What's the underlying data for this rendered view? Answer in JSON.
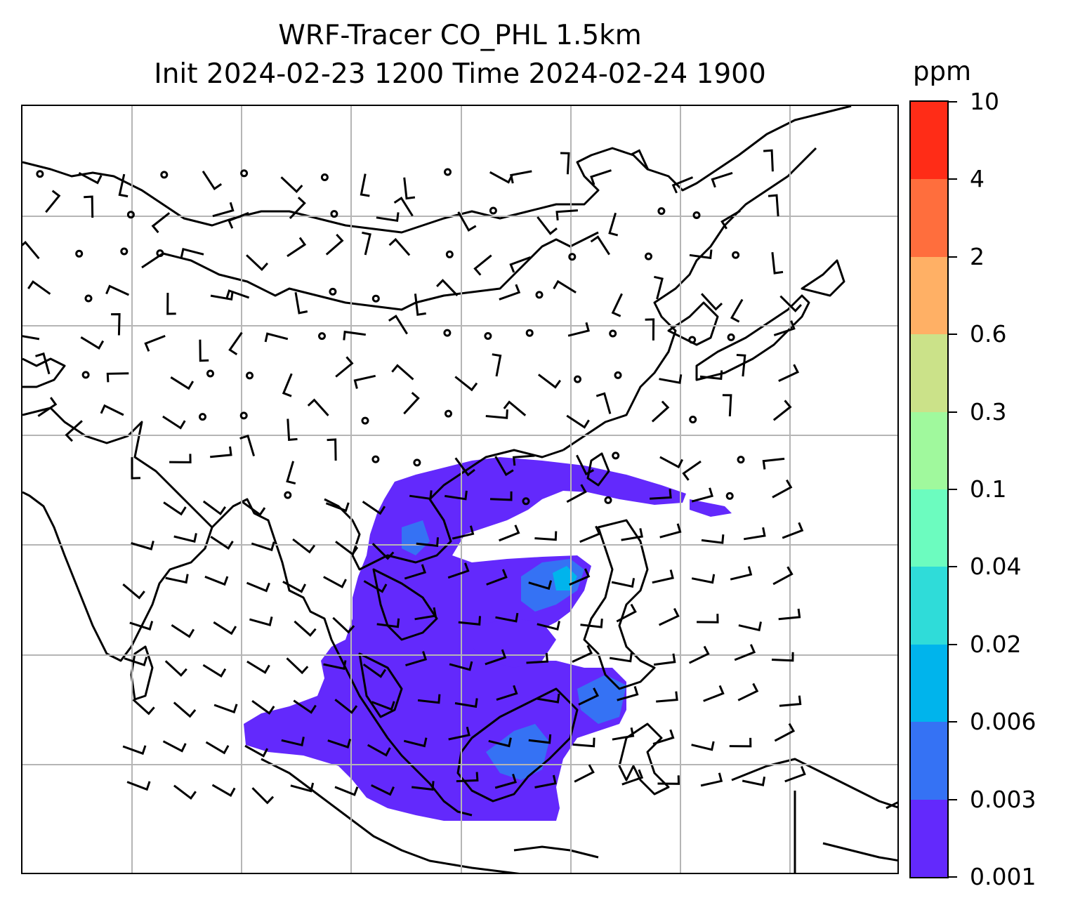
{
  "title": {
    "line1": "WRF-Tracer CO_PHL 1.5km",
    "line2": "Init 2024-02-23 1200 Time 2024-02-24 1900"
  },
  "colorbar": {
    "unit": "ppm",
    "ticks": [
      "0.001",
      "0.003",
      "0.006",
      "0.02",
      "0.04",
      "0.1",
      "0.3",
      "0.6",
      "2",
      "4",
      "10"
    ],
    "colors": [
      "#6329fc",
      "#3572f4",
      "#00b4ec",
      "#2fdcd9",
      "#6cfcbf",
      "#a0f99d",
      "#cbe289",
      "#ffb065",
      "#ff6e3d",
      "#ff2c17"
    ]
  },
  "map": {
    "grid": "on",
    "field": "CO_PHL tracer concentration (filled contours)",
    "overlays": [
      "coastlines",
      "wind barbs",
      "calm-wind circles"
    ]
  }
}
